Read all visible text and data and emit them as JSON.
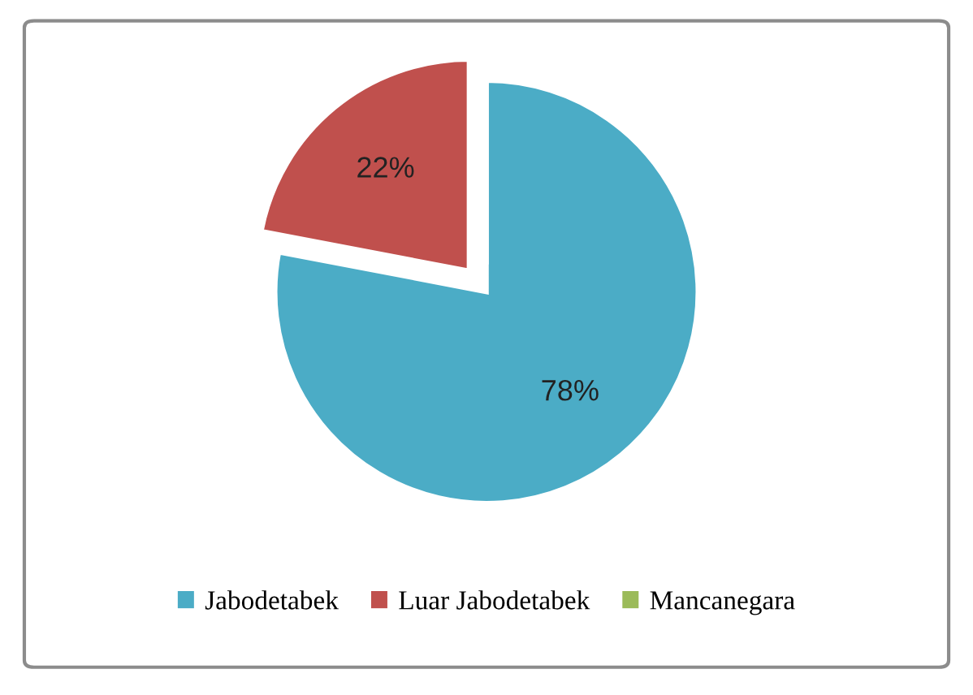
{
  "chart_data": {
    "type": "pie",
    "categories": [
      "Jabodetabek",
      "Luar Jabodetabek",
      "Mancanegara"
    ],
    "values": [
      78,
      22,
      0
    ],
    "colors": [
      "#4bacc6",
      "#c0504d",
      "#9bbb59"
    ],
    "value_labels": [
      "78%",
      "22%",
      null
    ],
    "legend": "bottom"
  }
}
